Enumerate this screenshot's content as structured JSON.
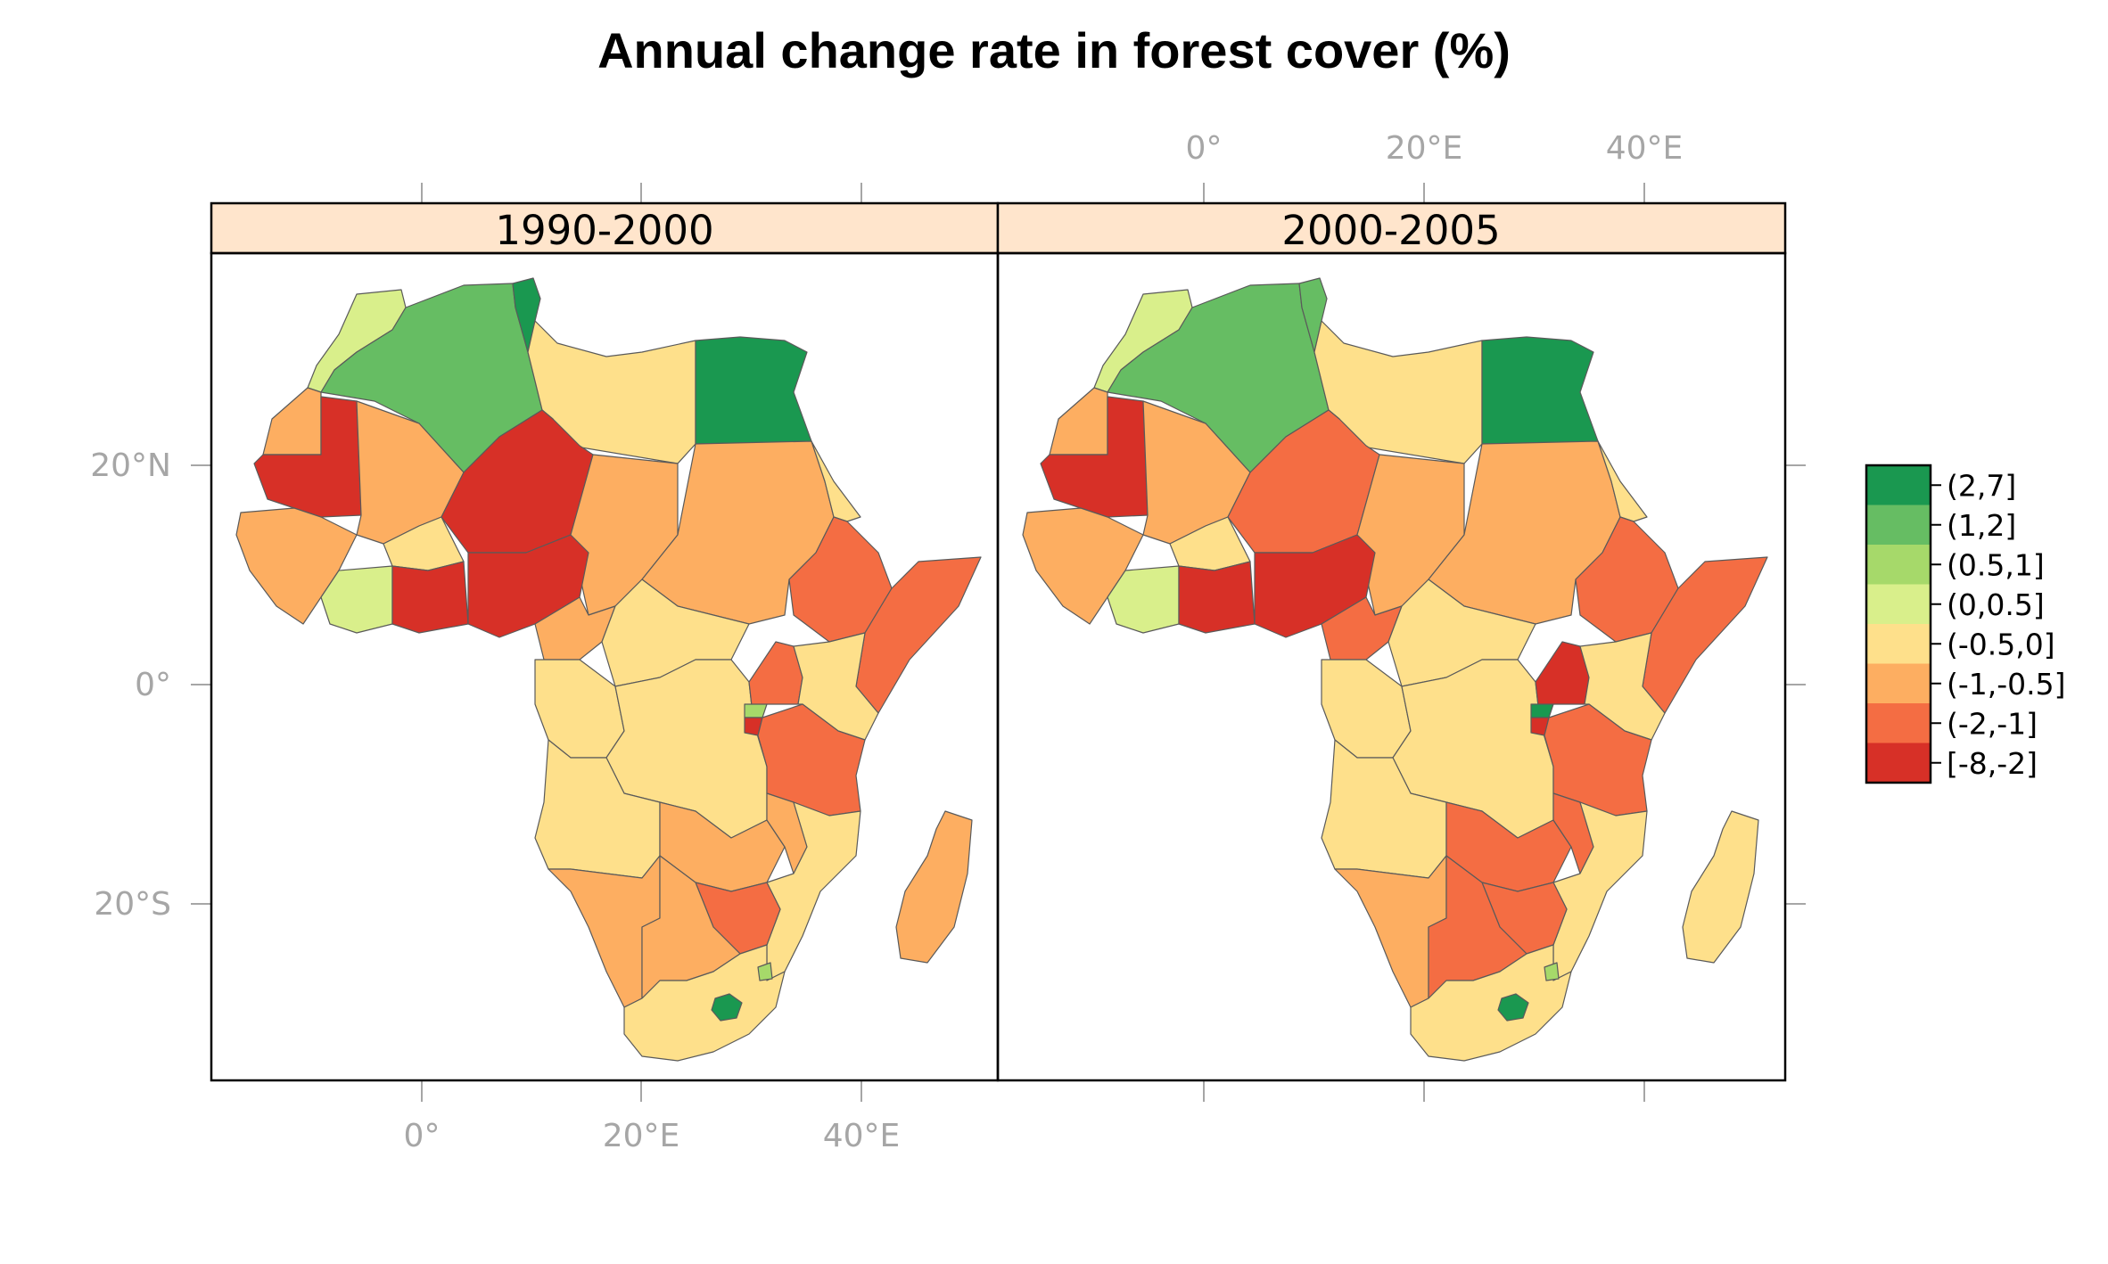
{
  "title": "Annual change rate in forest cover (%)",
  "panels": [
    {
      "label": "1990-2000"
    },
    {
      "label": "2000-2005"
    }
  ],
  "axes": {
    "x_ticks": [
      "0°",
      "20°E",
      "40°E"
    ],
    "y_ticks": [
      "20°N",
      "0°",
      "20°S"
    ]
  },
  "legend": {
    "entries": [
      {
        "label": "(2,7]",
        "color": "#1a9850"
      },
      {
        "label": "(1,2]",
        "color": "#66bd63"
      },
      {
        "label": "(0.5,1]",
        "color": "#a6d96a"
      },
      {
        "label": "(0,0.5]",
        "color": "#d9ef8b"
      },
      {
        "label": "(-0.5,0]",
        "color": "#fee08b"
      },
      {
        "label": "(-1,-0.5]",
        "color": "#fdae61"
      },
      {
        "label": "(-2,-1]",
        "color": "#f46d43"
      },
      {
        "label": "[-8,-2]",
        "color": "#d73027"
      }
    ]
  },
  "map_data": {
    "regions": [
      {
        "id": "morocco",
        "class_1990_2000": "(0,0.5]",
        "class_2000_2005": "(0,0.5]"
      },
      {
        "id": "algeria",
        "class_1990_2000": "(1,2]",
        "class_2000_2005": "(1,2]"
      },
      {
        "id": "tunisia",
        "class_1990_2000": "(2,7]",
        "class_2000_2005": "(1,2]"
      },
      {
        "id": "libya",
        "class_1990_2000": "(-0.5,0]",
        "class_2000_2005": "(-0.5,0]"
      },
      {
        "id": "egypt",
        "class_1990_2000": "(2,7]",
        "class_2000_2005": "(2,7]"
      },
      {
        "id": "western-sahara",
        "class_1990_2000": "(-1,-0.5]",
        "class_2000_2005": "(-1,-0.5]"
      },
      {
        "id": "mauritania",
        "class_1990_2000": "[-8,-2]",
        "class_2000_2005": "[-8,-2]"
      },
      {
        "id": "mali",
        "class_1990_2000": "(-1,-0.5]",
        "class_2000_2005": "(-1,-0.5]"
      },
      {
        "id": "niger",
        "class_1990_2000": "[-8,-2]",
        "class_2000_2005": "(-2,-1]"
      },
      {
        "id": "chad",
        "class_1990_2000": "(-1,-0.5]",
        "class_2000_2005": "(-1,-0.5]"
      },
      {
        "id": "sudan",
        "class_1990_2000": "(-1,-0.5]",
        "class_2000_2005": "(-1,-0.5]"
      },
      {
        "id": "eritrea",
        "class_1990_2000": "(-0.5,0]",
        "class_2000_2005": "(-0.5,0]"
      },
      {
        "id": "ethiopia",
        "class_1990_2000": "(-2,-1]",
        "class_2000_2005": "(-2,-1]"
      },
      {
        "id": "somalia",
        "class_1990_2000": "(-2,-1]",
        "class_2000_2005": "(-2,-1]"
      },
      {
        "id": "west-coast",
        "class_1990_2000": "(-1,-0.5]",
        "class_2000_2005": "(-1,-0.5]"
      },
      {
        "id": "burkina-faso",
        "class_1990_2000": "(-0.5,0]",
        "class_2000_2005": "(-0.5,0]"
      },
      {
        "id": "cote-divoire",
        "class_1990_2000": "(0,0.5]",
        "class_2000_2005": "(0,0.5]"
      },
      {
        "id": "ghana-togo-benin",
        "class_1990_2000": "[-8,-2]",
        "class_2000_2005": "[-8,-2]"
      },
      {
        "id": "nigeria",
        "class_1990_2000": "[-8,-2]",
        "class_2000_2005": "[-8,-2]"
      },
      {
        "id": "cameroon",
        "class_1990_2000": "(-1,-0.5]",
        "class_2000_2005": "(-2,-1]"
      },
      {
        "id": "central-african-republic",
        "class_1990_2000": "(-0.5,0]",
        "class_2000_2005": "(-0.5,0]"
      },
      {
        "id": "gabon-congo",
        "class_1990_2000": "(-0.5,0]",
        "class_2000_2005": "(-0.5,0]"
      },
      {
        "id": "dr-congo",
        "class_1990_2000": "(-0.5,0]",
        "class_2000_2005": "(-0.5,0]"
      },
      {
        "id": "uganda",
        "class_1990_2000": "(-2,-1]",
        "class_2000_2005": "[-8,-2]"
      },
      {
        "id": "kenya",
        "class_1990_2000": "(-0.5,0]",
        "class_2000_2005": "(-0.5,0]"
      },
      {
        "id": "rwanda",
        "class_1990_2000": "(0.5,1]",
        "class_2000_2005": "(2,7]"
      },
      {
        "id": "burundi",
        "class_1990_2000": "[-8,-2]",
        "class_2000_2005": "[-8,-2]"
      },
      {
        "id": "tanzania",
        "class_1990_2000": "(-2,-1]",
        "class_2000_2005": "(-2,-1]"
      },
      {
        "id": "angola",
        "class_1990_2000": "(-0.5,0]",
        "class_2000_2005": "(-0.5,0]"
      },
      {
        "id": "zambia",
        "class_1990_2000": "(-1,-0.5]",
        "class_2000_2005": "(-2,-1]"
      },
      {
        "id": "malawi",
        "class_1990_2000": "(-1,-0.5]",
        "class_2000_2005": "(-2,-1]"
      },
      {
        "id": "mozambique",
        "class_1990_2000": "(-0.5,0]",
        "class_2000_2005": "(-0.5,0]"
      },
      {
        "id": "zimbabwe",
        "class_1990_2000": "(-2,-1]",
        "class_2000_2005": "(-2,-1]"
      },
      {
        "id": "namibia",
        "class_1990_2000": "(-1,-0.5]",
        "class_2000_2005": "(-1,-0.5]"
      },
      {
        "id": "botswana",
        "class_1990_2000": "(-1,-0.5]",
        "class_2000_2005": "(-2,-1]"
      },
      {
        "id": "south-africa",
        "class_1990_2000": "(-0.5,0]",
        "class_2000_2005": "(-0.5,0]"
      },
      {
        "id": "lesotho",
        "class_1990_2000": "(2,7]",
        "class_2000_2005": "(2,7]"
      },
      {
        "id": "swaziland",
        "class_1990_2000": "(0.5,1]",
        "class_2000_2005": "(0.5,1]"
      },
      {
        "id": "madagascar",
        "class_1990_2000": "(-1,-0.5]",
        "class_2000_2005": "(-0.5,0]"
      }
    ]
  }
}
